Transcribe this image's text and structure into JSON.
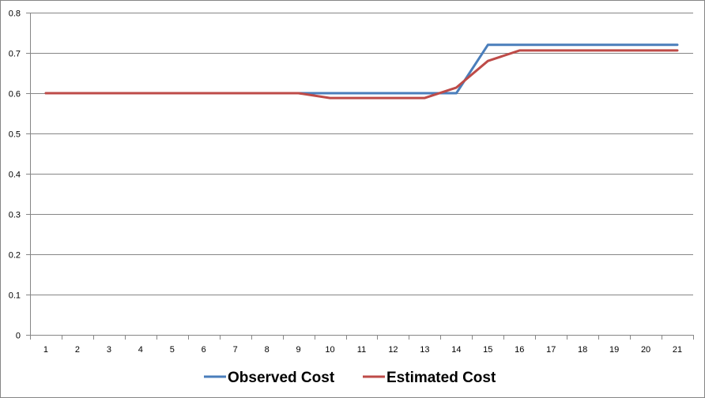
{
  "chart_data": {
    "type": "line",
    "title": "",
    "xlabel": "",
    "ylabel": "",
    "x": [
      1,
      2,
      3,
      4,
      5,
      6,
      7,
      8,
      9,
      10,
      11,
      12,
      13,
      14,
      15,
      16,
      17,
      18,
      19,
      20,
      21
    ],
    "x_tick_labels": [
      "1",
      "2",
      "3",
      "4",
      "5",
      "6",
      "7",
      "8",
      "9",
      "10",
      "11",
      "12",
      "13",
      "14",
      "15",
      "16",
      "17",
      "18",
      "19",
      "20",
      "21"
    ],
    "y_tick_labels": [
      "0",
      "0.1",
      "0.2",
      "0.3",
      "0.4",
      "0.5",
      "0.6",
      "0.7",
      "0.8"
    ],
    "ylim": [
      0,
      0.8
    ],
    "y_ticks": [
      0,
      0.1,
      0.2,
      0.3,
      0.4,
      0.5,
      0.6,
      0.7,
      0.8
    ],
    "grid": "horizontal",
    "legend": "bottom",
    "series": [
      {
        "name": "Observed Cost",
        "color": "#4a7ebb",
        "values": [
          0.6,
          0.6,
          0.6,
          0.6,
          0.6,
          0.6,
          0.6,
          0.6,
          0.6,
          0.6,
          0.6,
          0.6,
          0.6,
          0.6,
          0.72,
          0.72,
          0.72,
          0.72,
          0.72,
          0.72,
          0.72
        ]
      },
      {
        "name": "Estimated Cost",
        "color": "#be4b48",
        "values": [
          0.6,
          0.6,
          0.6,
          0.6,
          0.6,
          0.6,
          0.6,
          0.6,
          0.6,
          0.588,
          0.588,
          0.588,
          0.588,
          0.614,
          0.68,
          0.706,
          0.706,
          0.706,
          0.706,
          0.706,
          0.706
        ]
      }
    ]
  }
}
